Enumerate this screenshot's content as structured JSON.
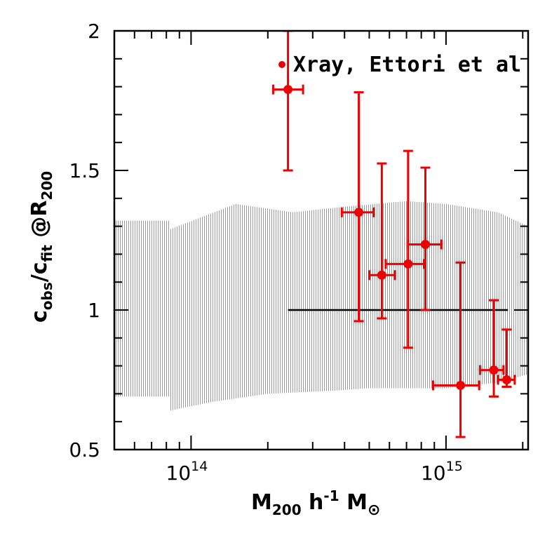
{
  "chart_data": {
    "type": "scatter",
    "title": "",
    "xlabel": {
      "main": "M",
      "sub1": "200",
      "mid": " h",
      "sup": "-1",
      "tail": " M",
      "sub2": "⊙"
    },
    "ylabel": {
      "c1": "c",
      "sub1": "obs",
      "slash": "/c",
      "sub2": "fit",
      "at": " @R",
      "sub3": "200"
    },
    "xscale": "log",
    "xlim": [
      50000000000000.0,
      2100000000000000.0
    ],
    "ylim": [
      0.5,
      2.0
    ],
    "x_major_ticks": [
      {
        "value": 100000000000000.0,
        "base": "10",
        "exp": "14"
      },
      {
        "value": 1000000000000000.0,
        "base": "10",
        "exp": "15"
      }
    ],
    "y_ticks": [
      {
        "value": 0.5,
        "label": "0.5"
      },
      {
        "value": 1.0,
        "label": "1"
      },
      {
        "value": 1.5,
        "label": "1.5"
      },
      {
        "value": 2.0,
        "label": "2"
      }
    ],
    "reference_line": {
      "y": 1.0,
      "x_from": 240000000000000.0,
      "x_to": 1750000000000000.0,
      "color": "#000000"
    },
    "bands": [
      {
        "name": "hatched-band-left",
        "color": "#9a9a9a",
        "upper": [
          [
            50000000000000.0,
            1.32
          ],
          [
            83000000000000.0,
            1.32
          ]
        ],
        "lower": [
          [
            50000000000000.0,
            0.69
          ],
          [
            83000000000000.0,
            0.69
          ]
        ]
      },
      {
        "name": "hatched-band-right",
        "color": "#9a9a9a",
        "upper": [
          [
            83000000000000.0,
            1.29
          ],
          [
            150000000000000.0,
            1.38
          ],
          [
            250000000000000.0,
            1.35
          ],
          [
            400000000000000.0,
            1.37
          ],
          [
            700000000000000.0,
            1.39
          ],
          [
            1000000000000000.0,
            1.38
          ],
          [
            1600000000000000.0,
            1.35
          ],
          [
            2100000000000000.0,
            1.3
          ]
        ],
        "lower": [
          [
            83000000000000.0,
            0.64
          ],
          [
            120000000000000.0,
            0.67
          ],
          [
            200000000000000.0,
            0.7
          ],
          [
            350000000000000.0,
            0.71
          ],
          [
            500000000000000.0,
            0.72
          ],
          [
            700000000000000.0,
            0.72
          ],
          [
            1000000000000000.0,
            0.72
          ],
          [
            1600000000000000.0,
            0.74
          ],
          [
            2100000000000000.0,
            0.77
          ]
        ]
      }
    ],
    "series": [
      {
        "name": "Xray, Ettori et al",
        "color": "#ee0000",
        "points": [
          {
            "x": 240000000000000.0,
            "y": 1.79,
            "ylo": 1.5,
            "yhi": 2.0,
            "xlo": 210000000000000.0,
            "xhi": 275000000000000.0
          },
          {
            "x": 455000000000000.0,
            "y": 1.35,
            "ylo": 0.96,
            "yhi": 1.78,
            "xlo": 390000000000000.0,
            "xhi": 520000000000000.0
          },
          {
            "x": 560000000000000.0,
            "y": 1.125,
            "ylo": 0.97,
            "yhi": 1.525,
            "xlo": 500000000000000.0,
            "xhi": 630000000000000.0
          },
          {
            "x": 710000000000000.0,
            "y": 1.165,
            "ylo": 0.865,
            "yhi": 1.57,
            "xlo": 580000000000000.0,
            "xhi": 820000000000000.0
          },
          {
            "x": 830000000000000.0,
            "y": 1.235,
            "ylo": 1.0,
            "yhi": 1.51,
            "xlo": 710000000000000.0,
            "xhi": 960000000000000.0
          },
          {
            "x": 1140000000000000.0,
            "y": 0.73,
            "ylo": 0.545,
            "yhi": 1.17,
            "xlo": 890000000000000.0,
            "xhi": 1350000000000000.0
          },
          {
            "x": 1540000000000000.0,
            "y": 0.785,
            "ylo": 0.69,
            "yhi": 1.035,
            "xlo": 1360000000000000.0,
            "xhi": 1680000000000000.0
          },
          {
            "x": 1730000000000000.0,
            "y": 0.75,
            "ylo": 0.725,
            "yhi": 0.93,
            "xlo": 1600000000000000.0,
            "xhi": 1860000000000000.0
          }
        ]
      }
    ],
    "legend": {
      "label": "Xray, Ettori et al",
      "placement": "top-right"
    }
  }
}
